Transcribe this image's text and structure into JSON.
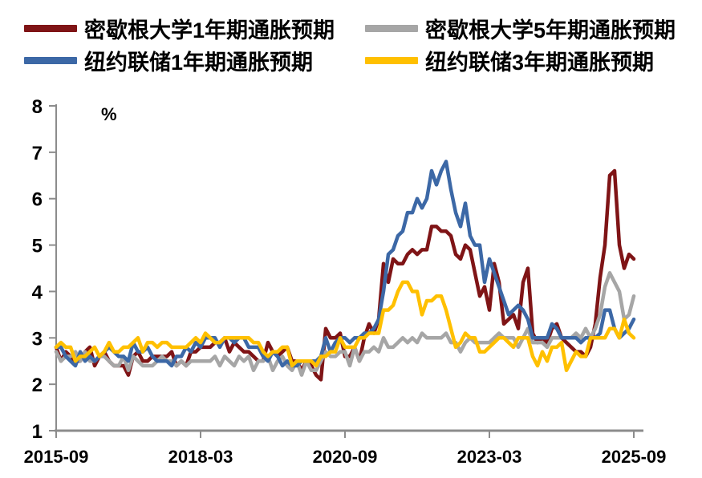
{
  "page": {
    "background": "#ffffff",
    "text_color": "#000000"
  },
  "chart_data": {
    "type": "line",
    "title": "",
    "ylabel": "%",
    "x_start": "2015-09",
    "x_end": "2025-09",
    "x_frequency": "monthly",
    "ylim": [
      1,
      8
    ],
    "grid": false,
    "legend_position": "top",
    "axis_color": "#8C8C8C",
    "y_ticks": [
      1,
      2,
      3,
      4,
      5,
      6,
      7,
      8
    ],
    "x_ticks": [
      {
        "label": "2015-09",
        "month_index": 0
      },
      {
        "label": "2018-03",
        "month_index": 30
      },
      {
        "label": "2020-09",
        "month_index": 60
      },
      {
        "label": "2023-03",
        "month_index": 90
      },
      {
        "label": "2025-09",
        "month_index": 120
      }
    ],
    "series": [
      {
        "id": "umich-1y",
        "name": "密歇根大学1年期通胀预期",
        "color": "#7F1416",
        "values": [
          2.8,
          2.5,
          2.7,
          2.6,
          2.5,
          2.5,
          2.7,
          2.8,
          2.4,
          2.6,
          2.7,
          2.5,
          2.4,
          2.4,
          2.4,
          2.2,
          2.6,
          2.7,
          2.5,
          2.5,
          2.6,
          2.6,
          2.6,
          2.6,
          2.7,
          2.4,
          2.5,
          2.4,
          2.7,
          2.7,
          2.8,
          2.8,
          2.8,
          2.9,
          2.9,
          3.0,
          2.7,
          2.9,
          2.8,
          2.7,
          2.7,
          2.6,
          2.5,
          2.5,
          2.9,
          2.7,
          2.6,
          2.7,
          2.8,
          2.5,
          2.5,
          2.3,
          2.5,
          2.4,
          2.2,
          2.1,
          3.2,
          3.0,
          3.0,
          3.1,
          2.6,
          2.6,
          2.8,
          2.5,
          3.0,
          3.3,
          3.1,
          3.4,
          4.6,
          4.2,
          4.7,
          4.6,
          4.6,
          4.8,
          4.9,
          4.8,
          4.9,
          4.9,
          5.4,
          5.4,
          5.3,
          5.3,
          5.2,
          4.8,
          4.7,
          5.0,
          4.9,
          4.4,
          3.9,
          4.1,
          3.6,
          4.6,
          4.2,
          3.3,
          3.4,
          3.5,
          3.2,
          4.2,
          4.5,
          3.1,
          2.9,
          3.0,
          2.9,
          3.2,
          3.3,
          3.0,
          2.9,
          2.8,
          2.7,
          2.7,
          2.6,
          2.8,
          3.3,
          4.3,
          5.0,
          6.5,
          6.6,
          5.0,
          4.5,
          4.8,
          4.7
        ]
      },
      {
        "id": "umich-5y",
        "name": "密歇根大学5年期通胀预期",
        "color": "#A6A6A6",
        "values": [
          2.7,
          2.5,
          2.6,
          2.6,
          2.7,
          2.5,
          2.7,
          2.5,
          2.5,
          2.6,
          2.6,
          2.5,
          2.4,
          2.4,
          2.6,
          2.3,
          2.6,
          2.5,
          2.4,
          2.4,
          2.4,
          2.5,
          2.6,
          2.5,
          2.5,
          2.4,
          2.5,
          2.4,
          2.5,
          2.5,
          2.5,
          2.5,
          2.5,
          2.6,
          2.4,
          2.6,
          2.5,
          2.4,
          2.6,
          2.5,
          2.6,
          2.3,
          2.5,
          2.5,
          2.6,
          2.3,
          2.5,
          2.6,
          2.4,
          2.3,
          2.5,
          2.2,
          2.5,
          2.3,
          2.3,
          2.5,
          2.7,
          2.6,
          2.6,
          2.7,
          2.7,
          2.4,
          2.8,
          2.5,
          2.7,
          2.7,
          2.8,
          2.7,
          3.0,
          2.8,
          2.8,
          2.9,
          3.0,
          2.9,
          3.0,
          2.9,
          3.1,
          3.0,
          3.0,
          3.0,
          3.0,
          3.1,
          2.9,
          2.9,
          2.7,
          2.9,
          3.0,
          2.9,
          2.9,
          2.9,
          2.9,
          3.0,
          3.1,
          3.0,
          3.0,
          3.0,
          2.8,
          3.0,
          3.2,
          2.9,
          2.9,
          2.9,
          2.8,
          3.0,
          3.0,
          3.0,
          3.0,
          3.0,
          3.1,
          3.0,
          3.2,
          3.0,
          3.2,
          3.5,
          4.1,
          4.4,
          4.2,
          4.0,
          3.4,
          3.5,
          3.9
        ]
      },
      {
        "id": "nyfed-1y",
        "name": "纽约联储1年期通胀预期",
        "color": "#3C68A6",
        "values": [
          2.8,
          2.8,
          2.6,
          2.5,
          2.4,
          2.7,
          2.5,
          2.6,
          2.5,
          2.6,
          2.7,
          2.8,
          2.7,
          2.6,
          2.6,
          2.5,
          2.9,
          2.7,
          2.7,
          2.8,
          2.6,
          2.5,
          2.5,
          2.5,
          2.4,
          2.6,
          2.6,
          2.8,
          2.7,
          2.9,
          2.8,
          3.0,
          3.0,
          3.0,
          2.8,
          3.0,
          3.0,
          2.9,
          3.0,
          3.0,
          2.8,
          2.8,
          2.8,
          2.6,
          2.5,
          2.7,
          2.6,
          2.4,
          2.5,
          2.4,
          2.4,
          2.5,
          2.5,
          2.5,
          2.5,
          2.6,
          3.0,
          2.7,
          2.9,
          3.0,
          3.0,
          2.9,
          3.0,
          3.0,
          3.1,
          3.1,
          3.2,
          3.4,
          4.0,
          4.8,
          4.9,
          5.2,
          5.3,
          5.7,
          5.7,
          6.0,
          5.8,
          6.0,
          6.6,
          6.3,
          6.6,
          6.8,
          6.2,
          5.7,
          5.4,
          5.9,
          5.2,
          5.0,
          5.0,
          4.2,
          4.7,
          4.4,
          4.1,
          3.8,
          3.5,
          3.6,
          3.7,
          3.6,
          3.4,
          3.0,
          3.0,
          3.0,
          3.0,
          3.3,
          3.2,
          3.0,
          3.0,
          3.0,
          3.0,
          2.9,
          3.0,
          3.0,
          3.0,
          3.1,
          3.6,
          3.6,
          3.2,
          3.0,
          3.1,
          3.2,
          3.4
        ]
      },
      {
        "id": "nyfed-3y",
        "name": "纽约联储3年期通胀预期",
        "color": "#FFC000",
        "values": [
          2.8,
          2.9,
          2.8,
          2.8,
          2.5,
          2.6,
          2.6,
          2.7,
          2.8,
          2.6,
          2.7,
          2.9,
          2.7,
          2.7,
          2.8,
          2.8,
          2.9,
          3.0,
          2.7,
          2.9,
          2.9,
          2.8,
          2.9,
          2.9,
          2.8,
          2.8,
          2.8,
          2.8,
          2.9,
          3.0,
          2.9,
          3.1,
          3.0,
          2.9,
          2.9,
          3.0,
          3.0,
          3.0,
          3.0,
          3.0,
          3.0,
          2.9,
          2.9,
          2.7,
          2.6,
          2.7,
          2.7,
          2.8,
          2.8,
          2.4,
          2.5,
          2.5,
          2.5,
          2.5,
          2.4,
          2.6,
          2.6,
          2.7,
          2.7,
          3.0,
          2.8,
          2.8,
          2.8,
          3.0,
          3.0,
          3.1,
          3.1,
          3.1,
          3.6,
          3.6,
          3.7,
          4.0,
          4.2,
          4.2,
          4.0,
          4.0,
          3.5,
          3.8,
          3.8,
          3.9,
          3.9,
          3.6,
          3.2,
          2.8,
          2.9,
          3.1,
          3.0,
          3.0,
          2.7,
          2.7,
          2.8,
          2.9,
          3.0,
          3.0,
          2.9,
          2.8,
          3.0,
          3.0,
          3.0,
          2.6,
          2.4,
          2.7,
          2.5,
          2.8,
          2.8,
          2.9,
          2.3,
          2.5,
          2.7,
          2.6,
          2.6,
          3.0,
          3.0,
          3.0,
          3.0,
          3.2,
          3.2,
          3.0,
          3.4,
          3.1,
          3.0
        ]
      }
    ]
  }
}
